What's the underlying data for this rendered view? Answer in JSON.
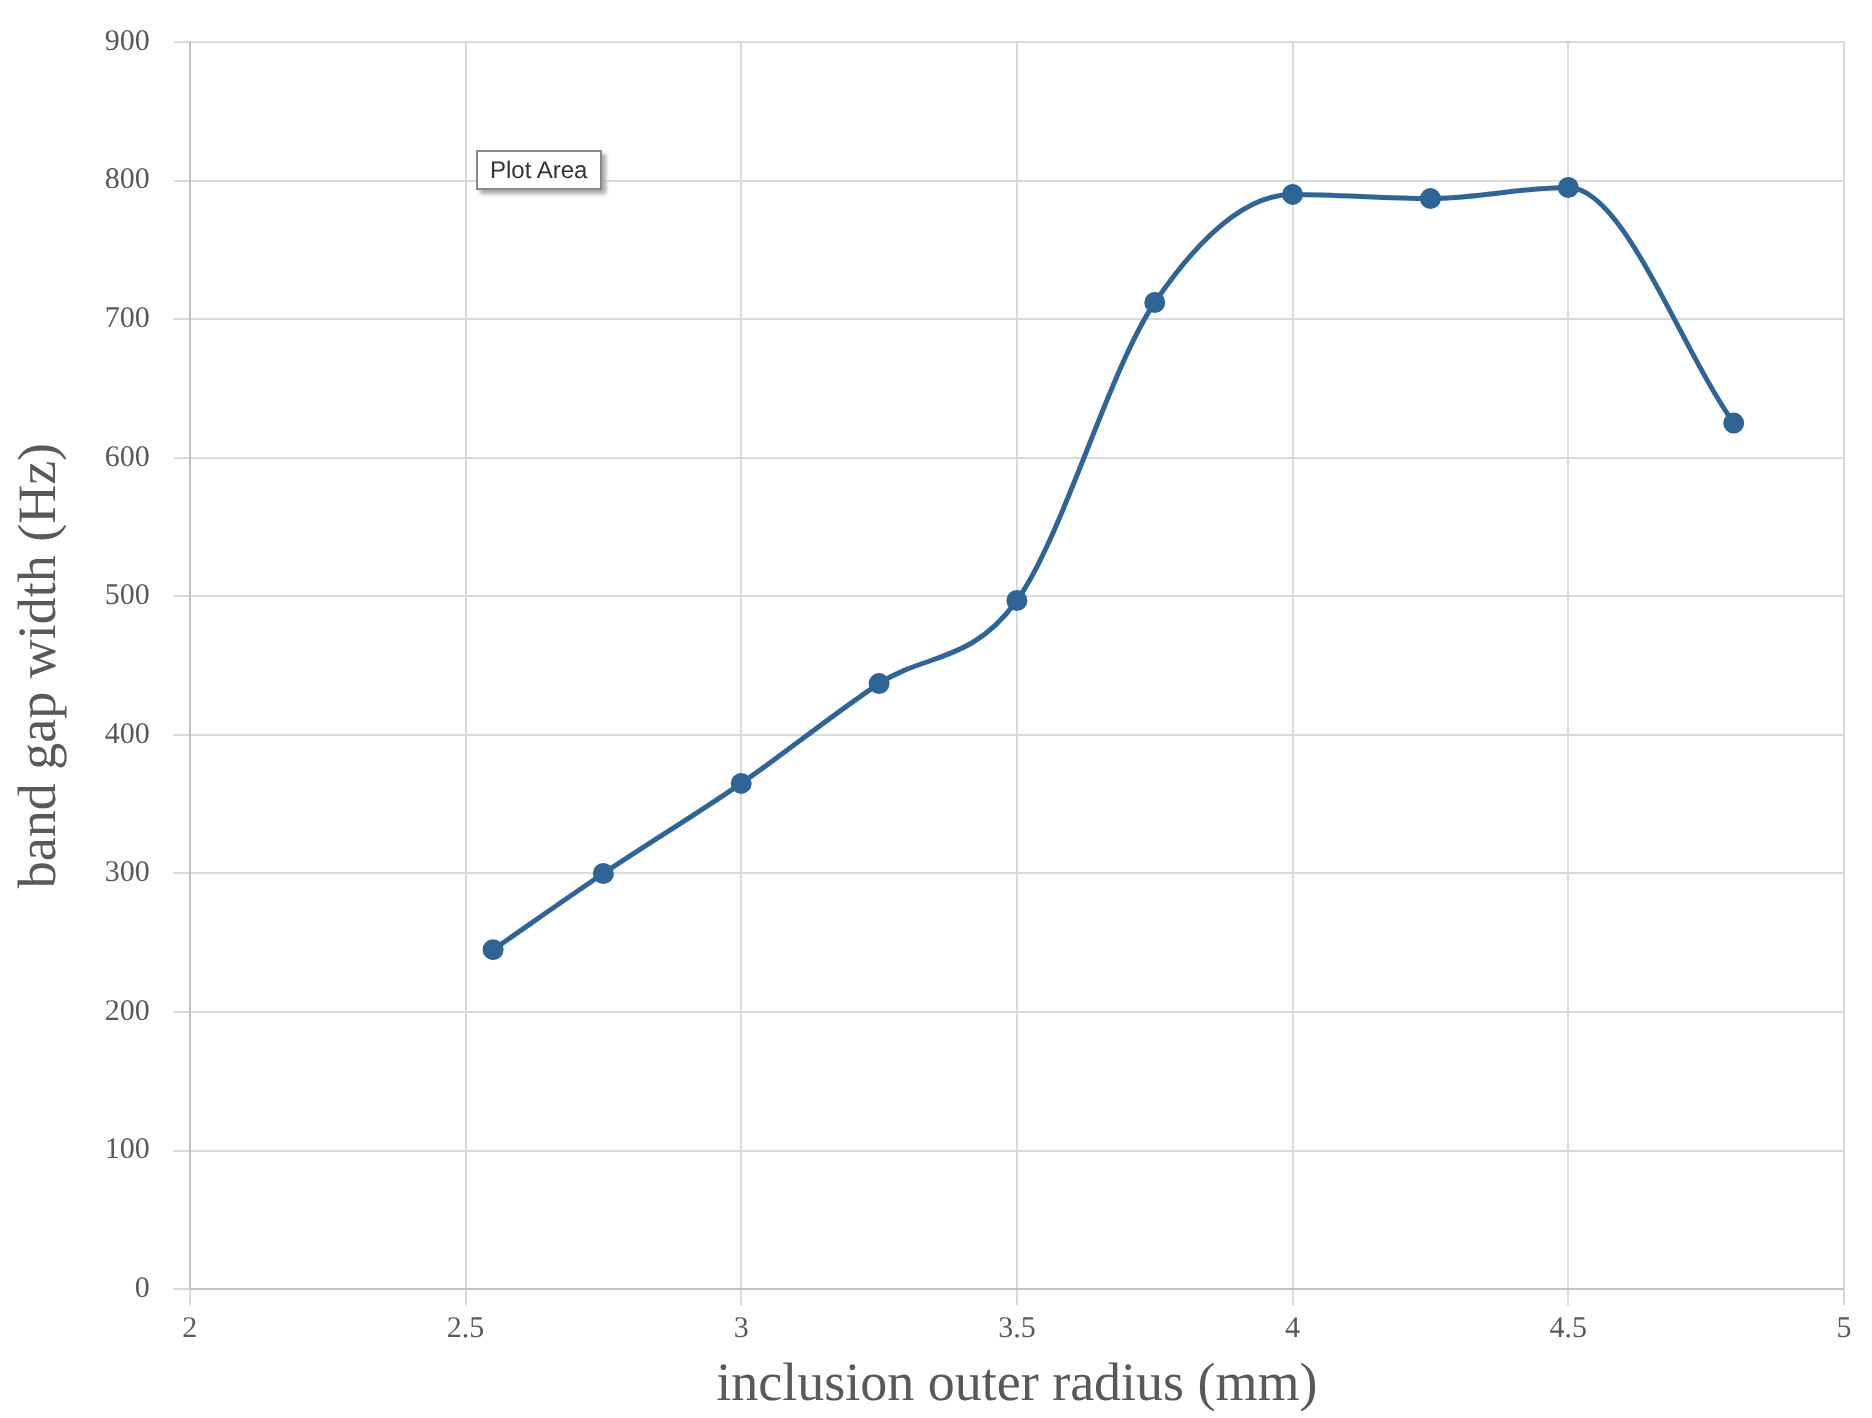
{
  "chart_data": {
    "type": "line",
    "xlabel": "inclusion outer radius (mm)",
    "ylabel": "band gap width (Hz)",
    "x": [
      2.55,
      2.75,
      3,
      3.25,
      3.5,
      3.75,
      4,
      4.25,
      4.5,
      4.8
    ],
    "series": [
      {
        "color": "#2f6497",
        "values": [
          245,
          300,
          365,
          437,
          497,
          712,
          790,
          787,
          795,
          625
        ]
      }
    ],
    "xlim": [
      2,
      5
    ],
    "xticks": [
      2,
      2.5,
      3,
      3.5,
      4,
      4.5,
      5
    ],
    "ylim": [
      0,
      900
    ],
    "yticks": [
      0,
      100,
      200,
      300,
      400,
      500,
      600,
      700,
      800,
      900
    ],
    "grid": true,
    "legend": false,
    "marker": "circle",
    "line_style": "solid",
    "annotations": [
      "Plot Area"
    ]
  }
}
